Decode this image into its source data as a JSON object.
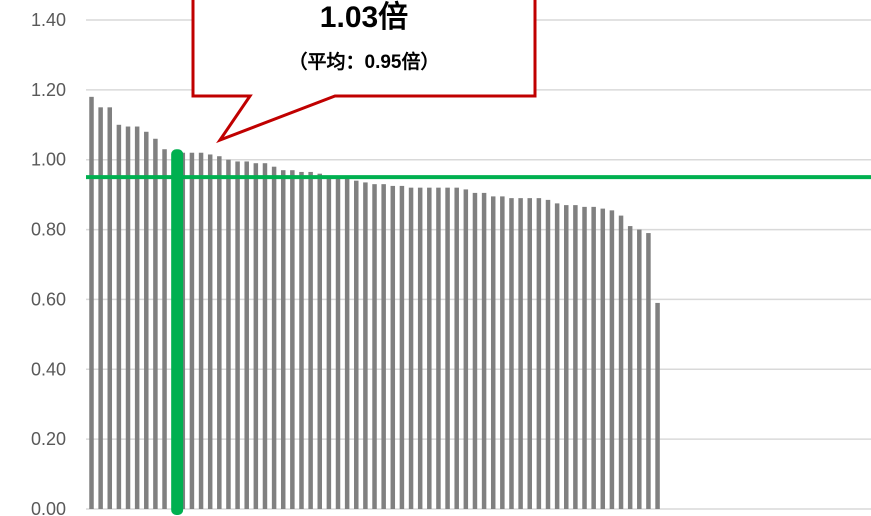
{
  "chart_data": {
    "type": "bar",
    "ylim": [
      0,
      1.4
    ],
    "y_ticks": [
      "0.00",
      "0.20",
      "0.40",
      "0.60",
      "0.80",
      "1.00",
      "1.20",
      "1.40"
    ],
    "grid": true,
    "values": [
      1.18,
      1.15,
      1.15,
      1.1,
      1.095,
      1.095,
      1.08,
      1.06,
      1.03,
      1.03,
      1.02,
      1.02,
      1.02,
      1.015,
      1.01,
      1.0,
      0.995,
      0.995,
      0.99,
      0.99,
      0.98,
      0.97,
      0.97,
      0.965,
      0.965,
      0.96,
      0.95,
      0.95,
      0.945,
      0.94,
      0.935,
      0.93,
      0.93,
      0.925,
      0.925,
      0.92,
      0.92,
      0.92,
      0.92,
      0.92,
      0.92,
      0.915,
      0.905,
      0.905,
      0.895,
      0.895,
      0.89,
      0.89,
      0.89,
      0.89,
      0.885,
      0.875,
      0.87,
      0.87,
      0.865,
      0.865,
      0.86,
      0.855,
      0.84,
      0.81,
      0.8,
      0.79,
      0.59
    ],
    "highlight_index": 9,
    "highlight_value": 1.03,
    "average": 0.95,
    "colors": {
      "bar": "#808080",
      "highlight": "#00B050",
      "average_line": "#00B050",
      "callout_border": "#C00000",
      "grid": "#D9D9D9"
    },
    "callout": {
      "value_text": "1.03倍",
      "average_text": "（平均：0.95倍）"
    }
  }
}
